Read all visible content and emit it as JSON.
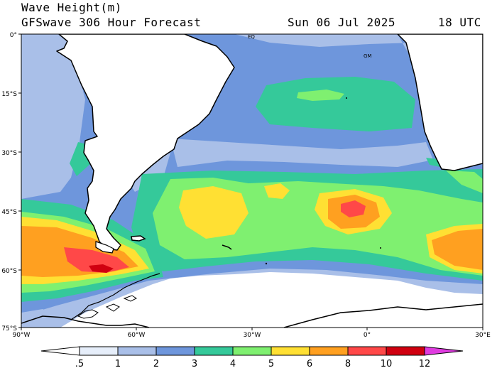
{
  "header": {
    "title": "Wave Height(m)",
    "subtitle": "GFSwave 306 Hour Forecast",
    "date": "Sun 06 Jul 2025",
    "time": "18 UTC"
  },
  "map": {
    "lat_labels": [
      "0°",
      "15°S",
      "30°S",
      "45°S",
      "60°S",
      "75°S"
    ],
    "lon_labels": [
      "90°W",
      "60°W",
      "30°W",
      "0°",
      "30°E"
    ],
    "annotations": [
      "EQ",
      "GM"
    ]
  },
  "colorbar": {
    "ticks": [
      ".5",
      "1",
      "2",
      "3",
      "4",
      "5",
      "6",
      "8",
      "10",
      "12"
    ],
    "colors": [
      "#e6eefa",
      "#a9bfe8",
      "#6e96dc",
      "#35c99a",
      "#7ff070",
      "#ffe033",
      "#ffa020",
      "#ff4848",
      "#d00010",
      "#e03ce0"
    ]
  },
  "colors": {
    "land": "#ffffff",
    "sea_ice": "#ffffff",
    "calm": "#e6eefa"
  }
}
